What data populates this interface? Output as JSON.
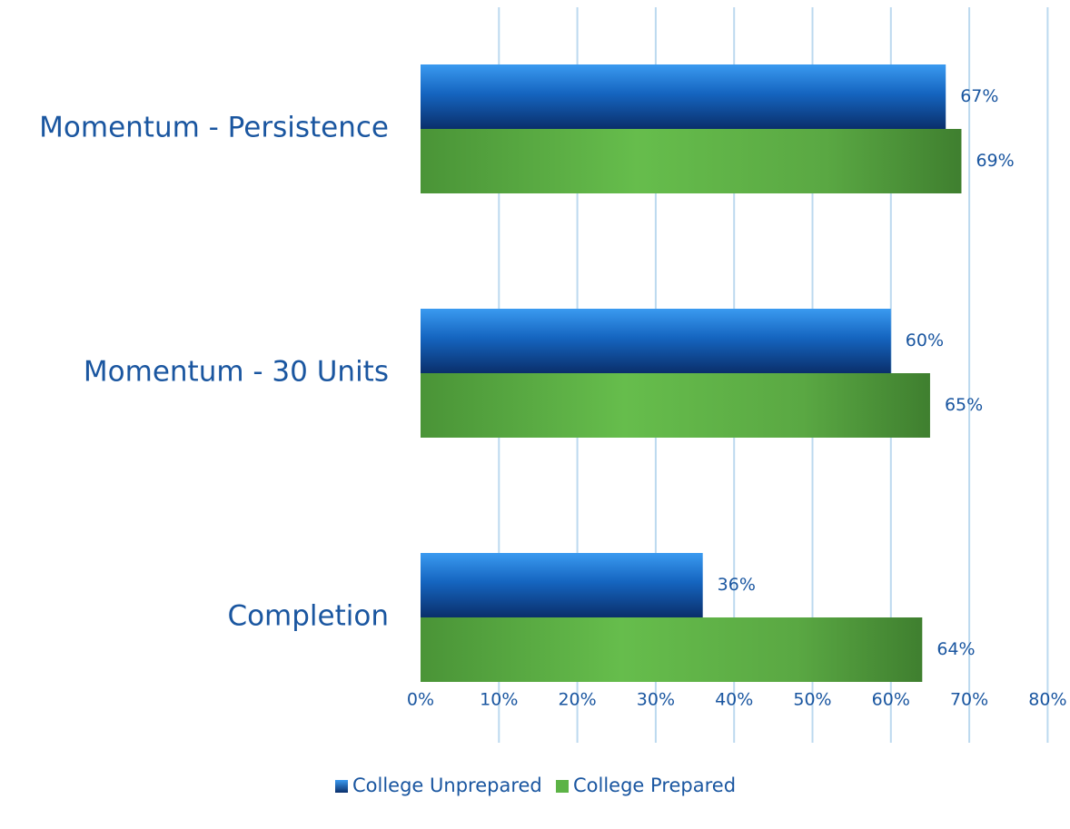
{
  "chart_data": {
    "type": "bar",
    "orientation": "horizontal",
    "categories": [
      "Momentum - Persistence",
      "Momentum - 30 Units",
      "Completion"
    ],
    "series": [
      {
        "name": "College Unprepared",
        "values": [
          67,
          60,
          36
        ],
        "labels": [
          "67%",
          "60%",
          "36%"
        ],
        "color": "#1e6fc9"
      },
      {
        "name": "College Prepared",
        "values": [
          69,
          65,
          64
        ],
        "labels": [
          "69%",
          "65%",
          "64%"
        ],
        "color": "#5cb346"
      }
    ],
    "xlim": [
      0,
      80
    ],
    "xticks": [
      0,
      10,
      20,
      30,
      40,
      50,
      60,
      70,
      80
    ],
    "xtick_labels": [
      "0%",
      "10%",
      "20%",
      "30%",
      "40%",
      "50%",
      "60%",
      "70%",
      "80%"
    ],
    "grid": true,
    "legend": "bottom",
    "colors": {
      "text": "#1a56a0",
      "grid": "#bcd9ef"
    }
  }
}
